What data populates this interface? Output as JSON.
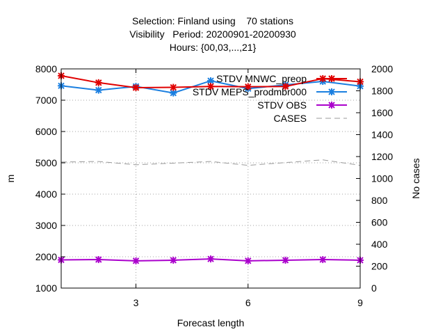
{
  "chart_data": {
    "type": "line",
    "title_lines": [
      "Selection: Finland using    70 stations",
      "Visibility   Period: 20200901-20200930",
      "Hours: {00,03,...,21}"
    ],
    "xlabel": "Forecast length",
    "ylabel": "m",
    "y2label": "No cases",
    "xlim": [
      1,
      9
    ],
    "ylim": [
      1000,
      8000
    ],
    "y2lim": [
      0,
      2000
    ],
    "xticks": [
      3,
      6,
      9
    ],
    "yticks": [
      1000,
      2000,
      3000,
      4000,
      5000,
      6000,
      7000,
      8000
    ],
    "y2ticks": [
      0,
      200,
      400,
      600,
      800,
      1000,
      1200,
      1400,
      1600,
      1800,
      2000
    ],
    "grid": true,
    "legend_position": "top-right",
    "x": [
      1,
      2,
      3,
      4,
      5,
      6,
      7,
      8,
      9
    ],
    "series": [
      {
        "name": "STDV MNWC_preop",
        "color": "#e00000",
        "axis": "y",
        "values": [
          7780,
          7560,
          7400,
          7410,
          7440,
          7430,
          7440,
          7690,
          7590
        ]
      },
      {
        "name": "STDV MEPS_prodmbr000",
        "color": "#1a7fe0",
        "axis": "y",
        "values": [
          7460,
          7320,
          7440,
          7230,
          7620,
          7370,
          7490,
          7600,
          7450
        ]
      },
      {
        "name": "STDV OBS",
        "color": "#aa00cc",
        "axis": "y",
        "values": [
          1900,
          1910,
          1870,
          1890,
          1930,
          1870,
          1890,
          1910,
          1890
        ]
      },
      {
        "name": "CASES",
        "color": "#999999",
        "axis": "y2",
        "dashed": true,
        "values": [
          1150,
          1155,
          1125,
          1140,
          1155,
          1120,
          1145,
          1170,
          1120
        ]
      }
    ]
  }
}
